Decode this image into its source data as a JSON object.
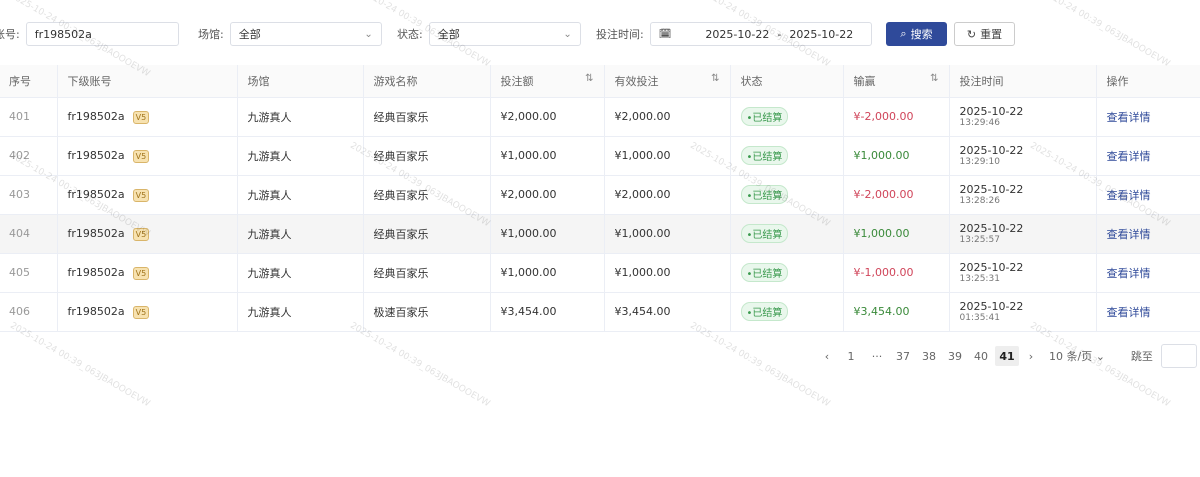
{
  "filters": {
    "account_label": "账号:",
    "account_value": "fr198502a",
    "venue_label": "场馆:",
    "venue_value": "全部",
    "status_label": "状态:",
    "status_value": "全部",
    "time_label": "投注时间:",
    "date_start": "2025-10-22",
    "date_sep": "-",
    "date_end": "2025-10-22",
    "search_label": "搜索",
    "reset_label": "重置"
  },
  "columns": [
    "序号",
    "下级账号",
    "场馆",
    "游戏名称",
    "投注额",
    "有效投注",
    "状态",
    "输赢",
    "投注时间",
    "操作"
  ],
  "rows": [
    {
      "idx": "401",
      "account": "fr198502a",
      "vip": "V5",
      "venue": "九游真人",
      "game": "经典百家乐",
      "bet": "¥2,000.00",
      "valid": "¥2,000.00",
      "status": "•已结算",
      "winloss": "¥-2,000.00",
      "neg": true,
      "date": "2025-10-22",
      "time": "13:29:46",
      "action": "查看详情"
    },
    {
      "idx": "402",
      "account": "fr198502a",
      "vip": "V5",
      "venue": "九游真人",
      "game": "经典百家乐",
      "bet": "¥1,000.00",
      "valid": "¥1,000.00",
      "status": "•已结算",
      "winloss": "¥1,000.00",
      "neg": false,
      "date": "2025-10-22",
      "time": "13:29:10",
      "action": "查看详情"
    },
    {
      "idx": "403",
      "account": "fr198502a",
      "vip": "V5",
      "venue": "九游真人",
      "game": "经典百家乐",
      "bet": "¥2,000.00",
      "valid": "¥2,000.00",
      "status": "•已结算",
      "winloss": "¥-2,000.00",
      "neg": true,
      "date": "2025-10-22",
      "time": "13:28:26",
      "action": "查看详情"
    },
    {
      "idx": "404",
      "account": "fr198502a",
      "vip": "V5",
      "venue": "九游真人",
      "game": "经典百家乐",
      "bet": "¥1,000.00",
      "valid": "¥1,000.00",
      "status": "•已结算",
      "winloss": "¥1,000.00",
      "neg": false,
      "date": "2025-10-22",
      "time": "13:25:57",
      "action": "查看详情"
    },
    {
      "idx": "405",
      "account": "fr198502a",
      "vip": "V5",
      "venue": "九游真人",
      "game": "经典百家乐",
      "bet": "¥1,000.00",
      "valid": "¥1,000.00",
      "status": "•已结算",
      "winloss": "¥-1,000.00",
      "neg": true,
      "date": "2025-10-22",
      "time": "13:25:31",
      "action": "查看详情"
    },
    {
      "idx": "406",
      "account": "fr198502a",
      "vip": "V5",
      "venue": "九游真人",
      "game": "极速百家乐",
      "bet": "¥3,454.00",
      "valid": "¥3,454.00",
      "status": "•已结算",
      "winloss": "¥3,454.00",
      "neg": false,
      "date": "2025-10-22",
      "time": "01:35:41",
      "action": "查看详情"
    }
  ],
  "pagination": {
    "pages": [
      "1",
      "···",
      "37",
      "38",
      "39",
      "40",
      "41"
    ],
    "current": "41",
    "page_size": "10 条/页",
    "jump_label": "跳至"
  },
  "watermark": "2025-10-24 00:39_063JBAOOOEVW"
}
